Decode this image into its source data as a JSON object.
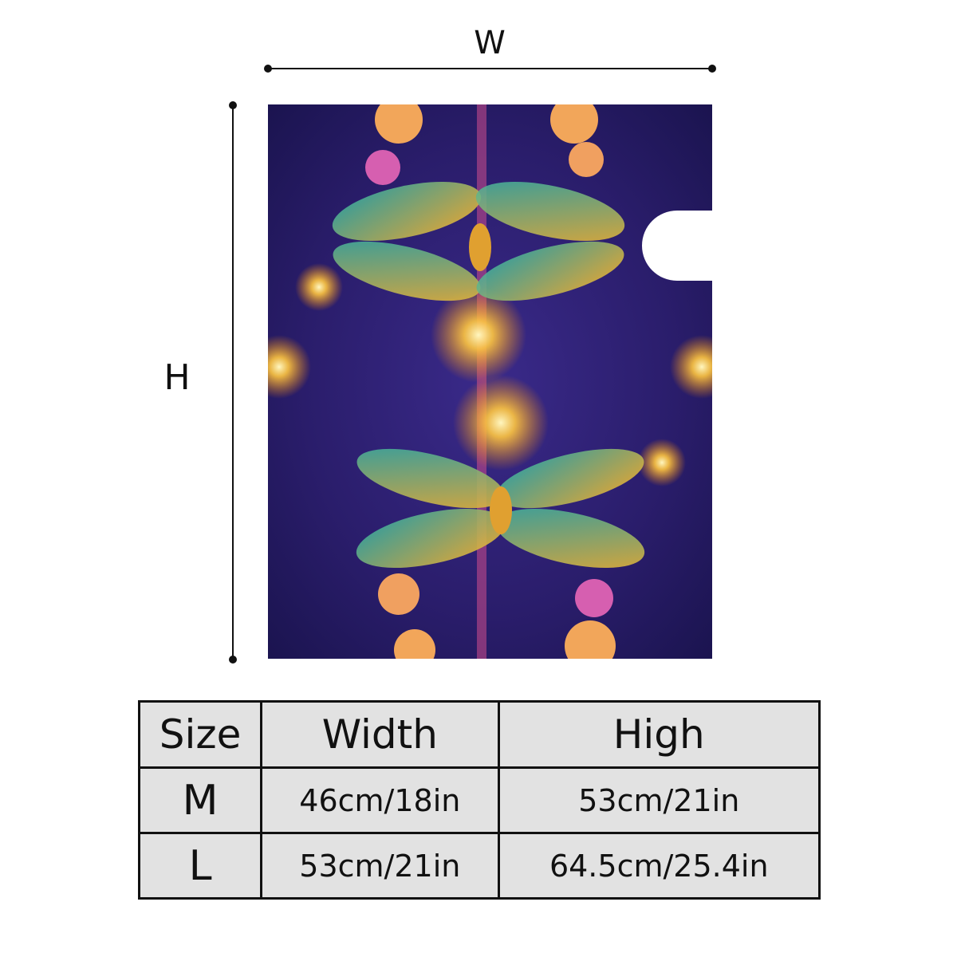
{
  "dimensions": {
    "width_label": "W",
    "height_label": "H"
  },
  "table": {
    "header": [
      "Size",
      "Width",
      "High"
    ],
    "rows": [
      [
        "M",
        "46cm/18in",
        "53cm/21in"
      ],
      [
        "L",
        "53cm/21in",
        "64.5cm/25.4in"
      ]
    ]
  }
}
